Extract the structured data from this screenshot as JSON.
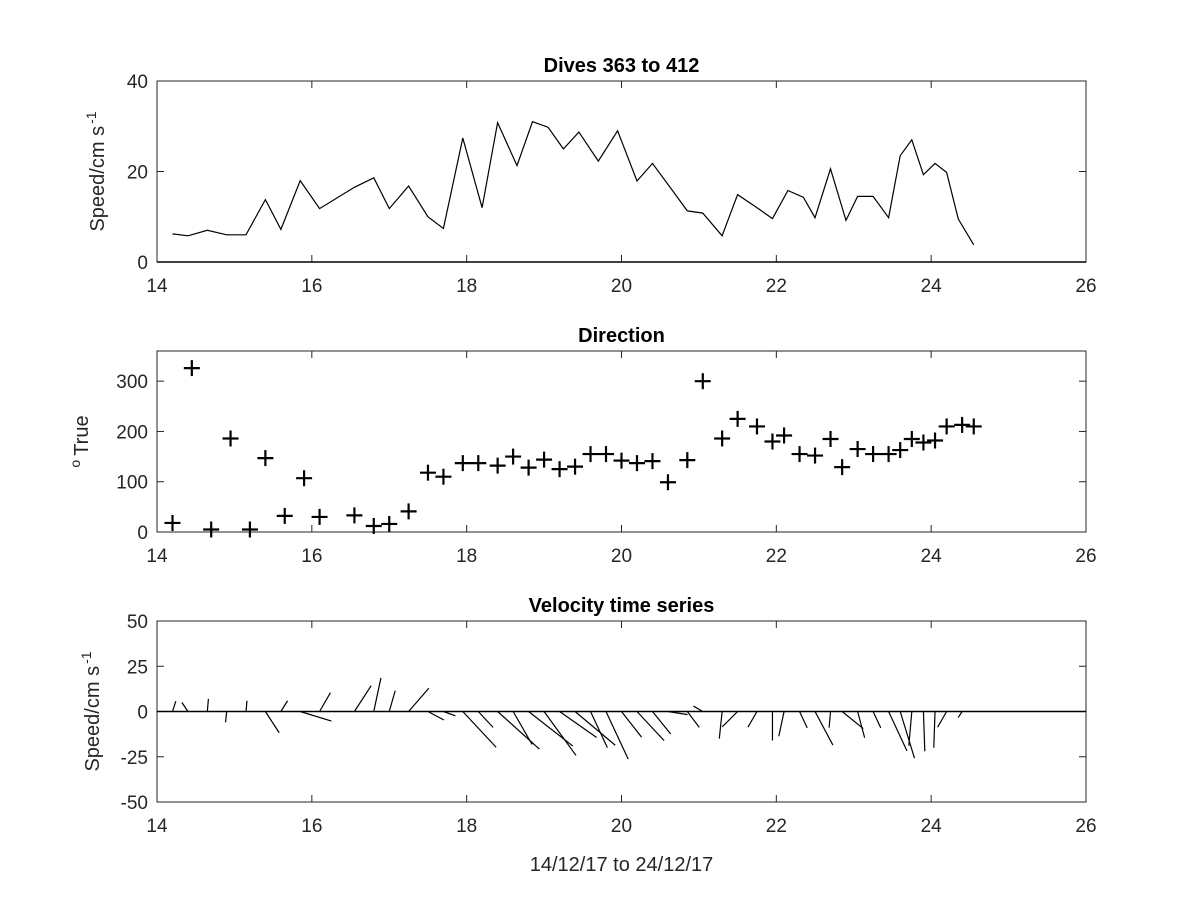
{
  "chart_data": [
    {
      "type": "line",
      "title": "Dives 363 to 412",
      "ylabel": {
        "base": "Speed/cm s",
        "sup": "-1"
      },
      "xlabel": "",
      "xlim": [
        14,
        26
      ],
      "ylim": [
        0,
        40
      ],
      "xticks": [
        14,
        16,
        18,
        20,
        22,
        24,
        26
      ],
      "yticks": [
        0,
        20,
        40
      ],
      "x": [
        14.2,
        14.4,
        14.65,
        14.9,
        15.15,
        15.4,
        15.6,
        15.85,
        16.1,
        16.55,
        16.8,
        17.0,
        17.25,
        17.5,
        17.7,
        17.95,
        18.2,
        18.4,
        18.65,
        18.85,
        19.05,
        19.25,
        19.45,
        19.7,
        19.95,
        20.2,
        20.4,
        20.65,
        20.85,
        21.05,
        21.3,
        21.5,
        21.75,
        21.95,
        22.15,
        22.35,
        22.5,
        22.7,
        22.9,
        23.05,
        23.25,
        23.45,
        23.6,
        23.75,
        23.9,
        24.05,
        24.2,
        24.35,
        24.55
      ],
      "y": [
        6.2,
        5.8,
        7,
        6,
        6,
        13.8,
        7.2,
        18,
        11.8,
        16.5,
        18.6,
        11.8,
        16.8,
        10,
        7.4,
        27.4,
        12,
        30.8,
        21.3,
        31,
        29.8,
        25,
        28.7,
        22.3,
        29,
        17.9,
        21.8,
        16,
        11.3,
        10.8,
        5.8,
        14.9,
        12,
        9.6,
        15.8,
        14.3,
        9.8,
        20.6,
        9.2,
        14.5,
        14.5,
        9.8,
        23.5,
        27,
        19.3,
        21.8,
        19.8,
        9.5,
        3.8
      ]
    },
    {
      "type": "scatter",
      "title": "Direction",
      "ylabel": {
        "base": "True",
        "sup": "o"
      },
      "xlabel": "",
      "xlim": [
        14,
        26
      ],
      "ylim": [
        0,
        360
      ],
      "xticks": [
        14,
        16,
        18,
        20,
        22,
        24,
        26
      ],
      "yticks": [
        0,
        100,
        200,
        300
      ],
      "marker": "+",
      "x": [
        14.2,
        14.45,
        14.7,
        14.95,
        15.2,
        15.4,
        15.65,
        15.9,
        16.1,
        16.55,
        16.8,
        17.0,
        17.25,
        17.5,
        17.7,
        17.95,
        18.15,
        18.4,
        18.6,
        18.8,
        19.0,
        19.2,
        19.4,
        19.6,
        19.8,
        20.0,
        20.2,
        20.4,
        20.6,
        20.85,
        21.05,
        21.3,
        21.5,
        21.75,
        21.95,
        22.1,
        22.3,
        22.5,
        22.7,
        22.85,
        23.05,
        23.25,
        23.45,
        23.6,
        23.75,
        23.9,
        24.05,
        24.2,
        24.4,
        24.55
      ],
      "y": [
        18,
        326,
        5,
        186,
        5,
        147,
        32,
        107,
        30,
        33,
        12,
        16,
        41,
        118,
        110,
        137,
        137,
        132,
        150,
        128,
        144,
        125,
        130,
        155,
        155,
        142,
        137,
        141,
        99,
        143,
        300,
        186,
        225,
        210,
        180,
        192,
        155,
        152,
        185,
        129,
        165,
        155,
        155,
        163,
        185,
        178,
        182,
        210,
        213,
        210
      ]
    },
    {
      "type": "stick",
      "title": "Velocity time series",
      "ylabel": {
        "base": "Speed/cm s",
        "sup": "-1"
      },
      "xlabel": "14/12/17 to 24/12/17",
      "xlim": [
        14,
        26
      ],
      "ylim": [
        -50,
        50
      ],
      "xticks": [
        14,
        16,
        18,
        20,
        22,
        24,
        26
      ],
      "yticks": [
        -50,
        -25,
        0,
        25,
        50
      ],
      "ytick_labels": [
        "-50",
        "-25",
        "0",
        "25",
        "50"
      ],
      "sticks": [
        [
          14.2,
          6,
          18
        ],
        [
          14.4,
          6,
          326
        ],
        [
          14.65,
          7,
          5
        ],
        [
          14.9,
          6,
          186
        ],
        [
          15.15,
          6,
          5
        ],
        [
          15.4,
          14,
          147
        ],
        [
          15.6,
          7,
          32
        ],
        [
          15.85,
          18,
          107
        ],
        [
          16.1,
          12,
          30
        ],
        [
          16.55,
          17,
          33
        ],
        [
          16.8,
          19,
          12
        ],
        [
          17.0,
          12,
          16
        ],
        [
          17.25,
          17,
          41
        ],
        [
          17.5,
          10,
          118
        ],
        [
          17.7,
          7,
          110
        ],
        [
          17.95,
          27,
          137
        ],
        [
          18.15,
          12,
          137
        ],
        [
          18.4,
          31,
          132
        ],
        [
          18.6,
          21,
          150
        ],
        [
          18.8,
          31,
          128
        ],
        [
          19.0,
          30,
          144
        ],
        [
          19.2,
          25,
          125
        ],
        [
          19.4,
          29,
          130
        ],
        [
          19.6,
          22,
          155
        ],
        [
          19.8,
          29,
          155
        ],
        [
          20.0,
          18,
          142
        ],
        [
          20.2,
          22,
          137
        ],
        [
          20.4,
          16,
          141
        ],
        [
          20.6,
          11,
          99
        ],
        [
          20.85,
          11,
          143
        ],
        [
          21.05,
          6,
          300
        ],
        [
          21.3,
          15,
          186
        ],
        [
          21.5,
          12,
          225
        ],
        [
          21.75,
          10,
          210
        ],
        [
          21.95,
          16,
          180
        ],
        [
          22.1,
          14,
          192
        ],
        [
          22.3,
          10,
          155
        ],
        [
          22.5,
          21,
          152
        ],
        [
          22.7,
          9,
          185
        ],
        [
          22.85,
          15,
          129
        ],
        [
          23.05,
          15,
          165
        ],
        [
          23.25,
          10,
          155
        ],
        [
          23.45,
          24,
          155
        ],
        [
          23.6,
          27,
          163
        ],
        [
          23.75,
          19,
          185
        ],
        [
          23.9,
          22,
          178
        ],
        [
          24.05,
          20,
          182
        ],
        [
          24.2,
          10,
          210
        ],
        [
          24.4,
          4,
          213
        ]
      ]
    }
  ]
}
